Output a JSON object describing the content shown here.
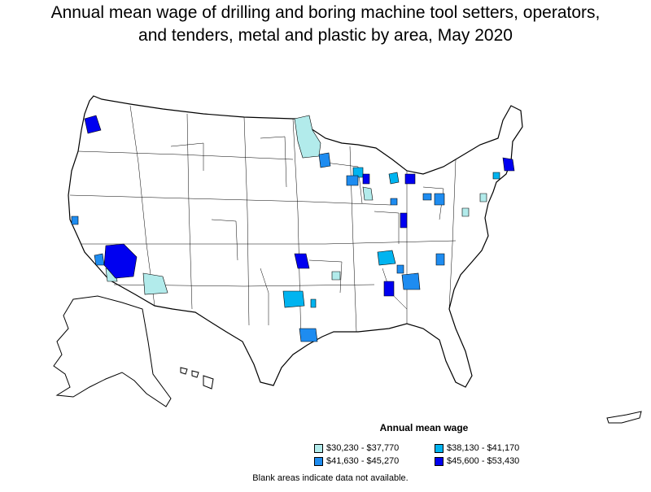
{
  "title_line1": "Annual mean wage of drilling and boring machine tool setters, operators,",
  "title_line2": "and tenders, metal and plastic by area, May 2020",
  "legend": {
    "title": "Annual mean wage",
    "items": [
      {
        "label": "$30,230 - $37,770",
        "color": "#b2ebeb"
      },
      {
        "label": "$38,130 - $41,170",
        "color": "#00b4f0"
      },
      {
        "label": "$41,630 - $45,270",
        "color": "#1e8cf0"
      },
      {
        "label": "$45,600 - $53,430",
        "color": "#0000f0"
      }
    ]
  },
  "footnote": "Blank areas indicate data not available."
}
